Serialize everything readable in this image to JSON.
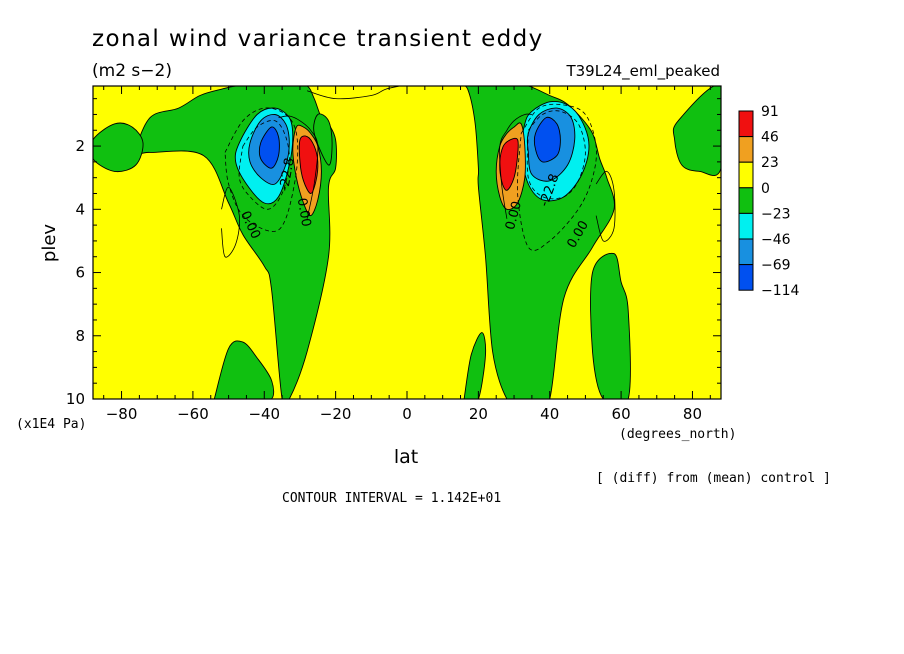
{
  "chart_data": {
    "type": "heatmap",
    "title": "zonal wind variance transient eddy",
    "subtitle": "(m2 s−2)",
    "run_label": "T39L24_eml_peaked",
    "xlabel": "lat",
    "xunits": "(degrees_north)",
    "ylabel": "plev",
    "yunits": "(x1E4 Pa)",
    "xlim": [
      -88,
      88
    ],
    "ylim": [
      0.1,
      10
    ],
    "y_inverted": true,
    "xticks": [
      -80,
      -60,
      -40,
      -20,
      0,
      20,
      40,
      60,
      80
    ],
    "xtick_labels": [
      "−80",
      "−60",
      "−40",
      "−20",
      "0",
      "20",
      "40",
      "60",
      "80"
    ],
    "yticks": [
      2,
      4,
      6,
      8,
      10
    ],
    "ytick_labels": [
      "2",
      "4",
      "6",
      "8",
      "10"
    ],
    "contour_interval_text": "CONTOUR INTERVAL = 1.142E+01",
    "note": "[ (diff) from (mean) control ]",
    "colorbar": {
      "labels": [
        "91",
        "46",
        "23",
        "0",
        "−23",
        "−46",
        "−69",
        "−114"
      ],
      "colors": [
        "#f01010",
        "#f0a020",
        "#ffff00",
        "#10c010",
        "#00f0f0",
        "#1890e0",
        "#0050f0"
      ]
    },
    "contour_labels": [
      {
        "text": "0.00",
        "lat": -44,
        "plev": 4.5,
        "angle": 65
      },
      {
        "text": "0.00",
        "lat": -29,
        "plev": 4.1,
        "angle": 80
      },
      {
        "text": "-22.8",
        "lat": -33.5,
        "plev": 2.9,
        "angle": -80
      },
      {
        "text": "0.00",
        "lat": 30,
        "plev": 4.2,
        "angle": -75
      },
      {
        "text": "-22.8",
        "lat": 40,
        "plev": 3.4,
        "angle": -70
      },
      {
        "text": "0.00",
        "lat": 48,
        "plev": 4.8,
        "angle": -60
      }
    ],
    "regions": [
      {
        "cls": "green",
        "lat": [
          -76,
          -72,
          -64,
          -58,
          -52,
          -48,
          -44,
          -38,
          -32,
          -28,
          -26,
          -24,
          -22,
          -20,
          -20,
          -22,
          -22,
          -28,
          -33,
          -35,
          -38,
          -40,
          -46,
          -50,
          -57,
          -72
        ],
        "plev": [
          2.2,
          1.1,
          0.8,
          0.4,
          0.2,
          0.1,
          0.1,
          0.1,
          0.1,
          0.1,
          0.5,
          1.1,
          1.3,
          1.8,
          2.7,
          3.3,
          5.5,
          8.5,
          10,
          10,
          6.5,
          5.8,
          4.8,
          3.8,
          2.3,
          2.2
        ]
      },
      {
        "cls": "green",
        "lat": [
          -88,
          -82,
          -77,
          -74,
          -76,
          -82,
          -88
        ],
        "plev": [
          1.8,
          1.3,
          1.4,
          1.9,
          2.6,
          2.8,
          2.4
        ]
      },
      {
        "cls": "green",
        "lat": [
          -54,
          -50,
          -46,
          -42,
          -38,
          -38,
          -44,
          -54
        ],
        "plev": [
          10,
          8.4,
          8.2,
          8.7,
          9.4,
          10,
          10,
          10
        ]
      },
      {
        "cls": "green",
        "lat": [
          -25,
          -22,
          -21,
          -22,
          -26
        ],
        "plev": [
          1.0,
          1.2,
          1.9,
          2.6,
          1.6
        ]
      },
      {
        "cls": "green",
        "lat": [
          15,
          17,
          19,
          20,
          20,
          22,
          24,
          28,
          31,
          32,
          36,
          40,
          44,
          52,
          58,
          56,
          54,
          52,
          48,
          44,
          40,
          34,
          30,
          24,
          20,
          16,
          15
        ],
        "plev": [
          0.1,
          0.2,
          1.2,
          2.7,
          3.3,
          5.5,
          8.5,
          10,
          10,
          10,
          10,
          10,
          6.8,
          5.2,
          4.0,
          3.0,
          2.4,
          1.6,
          1.0,
          0.6,
          0.4,
          0.1,
          0.1,
          0.1,
          0.1,
          0.1,
          0.1
        ]
      },
      {
        "cls": "green",
        "lat": [
          76,
          88,
          88,
          82,
          77,
          75
        ],
        "plev": [
          1.2,
          0.1,
          2.7,
          2.8,
          2.6,
          1.8
        ]
      },
      {
        "cls": "green",
        "lat": [
          52,
          58,
          60,
          62,
          62,
          55,
          52
        ],
        "plev": [
          6.0,
          5.4,
          6.3,
          7.2,
          10,
          10,
          8.5
        ]
      },
      {
        "cls": "green",
        "lat": [
          16,
          18,
          21,
          22,
          20,
          17,
          16
        ],
        "plev": [
          10,
          8.6,
          7.9,
          8.6,
          10,
          10,
          10
        ]
      },
      {
        "cls": "cyan",
        "lat": [
          -47,
          -42,
          -37,
          -33,
          -32,
          -33,
          -36,
          -40,
          -45,
          -48
        ],
        "plev": [
          1.9,
          1.0,
          0.8,
          1.1,
          1.7,
          2.6,
          3.6,
          3.8,
          3.2,
          2.5
        ]
      },
      {
        "cls": "blue1",
        "lat": [
          -44,
          -41,
          -37,
          -34,
          -33,
          -34,
          -37,
          -41,
          -44
        ],
        "plev": [
          1.9,
          1.2,
          1.0,
          1.3,
          1.9,
          2.6,
          3.2,
          3.0,
          2.5
        ]
      },
      {
        "cls": "blue2",
        "lat": [
          -41,
          -38,
          -36,
          -36,
          -38,
          -41
        ],
        "plev": [
          1.9,
          1.4,
          1.7,
          2.3,
          2.7,
          2.4
        ]
      },
      {
        "cls": "cyan",
        "lat": [
          33,
          35,
          40,
          45,
          49,
          51,
          49,
          44,
          38,
          34,
          32
        ],
        "plev": [
          1.3,
          0.9,
          0.6,
          0.7,
          1.2,
          2.0,
          2.9,
          3.6,
          3.7,
          3.2,
          2.2
        ]
      },
      {
        "cls": "blue1",
        "lat": [
          34,
          37,
          42,
          46,
          47,
          45,
          40,
          35,
          34
        ],
        "plev": [
          1.6,
          1.0,
          0.8,
          1.1,
          1.8,
          2.6,
          3.1,
          2.9,
          2.2
        ]
      },
      {
        "cls": "blue2",
        "lat": [
          36,
          39,
          42,
          43,
          42,
          38,
          36
        ],
        "plev": [
          1.6,
          1.1,
          1.3,
          1.8,
          2.3,
          2.5,
          2.1
        ]
      },
      {
        "cls": "orange",
        "lat": [
          -31,
          -29,
          -27,
          -25,
          -24,
          -25,
          -27,
          -29,
          -31,
          -32
        ],
        "plev": [
          1.4,
          1.4,
          1.6,
          2.0,
          2.8,
          3.7,
          4.2,
          3.8,
          3.0,
          2.1
        ]
      },
      {
        "cls": "red",
        "lat": [
          -30,
          -28,
          -26,
          -25,
          -25.5,
          -27,
          -29,
          -30
        ],
        "plev": [
          1.8,
          1.7,
          2.0,
          2.5,
          3.1,
          3.5,
          3.1,
          2.5
        ]
      },
      {
        "cls": "orange",
        "lat": [
          32,
          30,
          28,
          26,
          25,
          26,
          28,
          31,
          33,
          33
        ],
        "plev": [
          1.3,
          1.4,
          1.6,
          2.0,
          2.8,
          3.6,
          4.0,
          3.8,
          3.0,
          2.0
        ]
      },
      {
        "cls": "red",
        "lat": [
          31,
          29,
          27,
          26,
          26.5,
          28,
          30,
          31
        ],
        "plev": [
          1.8,
          1.8,
          2.0,
          2.5,
          3.1,
          3.4,
          3.0,
          2.3
        ]
      }
    ],
    "solid_contours": [
      {
        "lat": [
          -28,
          -20,
          -10,
          -6,
          -2
        ],
        "plev": [
          0.25,
          0.5,
          0.4,
          0.2,
          0.1
        ]
      },
      {
        "lat": [
          -52,
          -50,
          -47,
          -48,
          -51,
          -52
        ],
        "plev": [
          4.0,
          3.3,
          4.2,
          5.1,
          5.5,
          4.6
        ]
      },
      {
        "lat": [
          53,
          56,
          58,
          58,
          55,
          53
        ],
        "plev": [
          3.2,
          2.8,
          3.4,
          4.6,
          5.0,
          4.2
        ]
      },
      {
        "lat": [
          -36,
          -33,
          -30,
          -27,
          -25,
          -26,
          -28
        ],
        "plev": [
          1.1,
          1.05,
          1.2,
          1.5,
          2.0,
          3.2,
          4.3
        ]
      },
      {
        "lat": [
          35,
          33,
          30,
          28,
          26,
          26.5,
          28
        ],
        "plev": [
          1.0,
          1.0,
          1.2,
          1.5,
          2.0,
          3.2,
          4.3
        ]
      }
    ],
    "dashed_contours": [
      {
        "lat": [
          -46,
          -42,
          -37,
          -34,
          -33,
          -35,
          -39,
          -44,
          -47,
          -46
        ],
        "plev": [
          2.0,
          1.4,
          1.2,
          1.7,
          2.5,
          3.5,
          4.0,
          3.6,
          3.0,
          2.0
        ]
      },
      {
        "lat": [
          -51,
          -46,
          -40,
          -34,
          -31,
          -31,
          -34,
          -38,
          -46,
          -50,
          -51
        ],
        "plev": [
          2.2,
          1.2,
          0.8,
          1.0,
          1.6,
          2.8,
          4.3,
          4.7,
          4.2,
          3.2,
          2.2
        ]
      },
      {
        "lat": [
          34,
          38,
          43,
          48,
          50,
          48,
          44,
          38,
          34,
          34
        ],
        "plev": [
          1.5,
          1.0,
          0.9,
          1.3,
          2.2,
          3.1,
          3.6,
          3.6,
          3.0,
          1.5
        ]
      },
      {
        "lat": [
          32,
          37,
          44,
          50,
          53,
          52,
          48,
          40,
          34,
          31,
          32
        ],
        "plev": [
          1.6,
          0.8,
          0.7,
          1.0,
          2.0,
          3.0,
          4.0,
          5.0,
          5.2,
          3.5,
          1.6
        ]
      }
    ]
  }
}
